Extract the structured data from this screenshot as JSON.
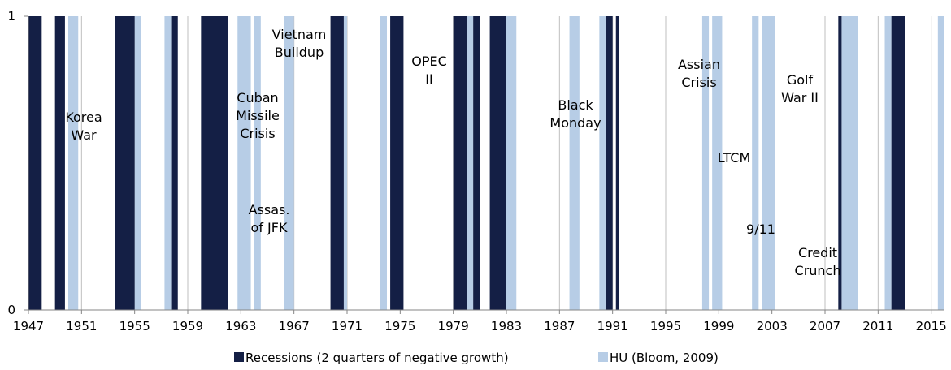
{
  "chart_data": {
    "type": "bar",
    "title": "",
    "xlabel": "",
    "ylabel": "",
    "xlim": [
      1947,
      2016
    ],
    "ylim": [
      0,
      1
    ],
    "x_ticks": [
      "1947",
      "1951",
      "1955",
      "1959",
      "1963",
      "1967",
      "1971",
      "1975",
      "1979",
      "1983",
      "1987",
      "1991",
      "1995",
      "1999",
      "2003",
      "2007",
      "2011",
      "2015"
    ],
    "y_ticks": [
      "0",
      "1"
    ],
    "grid": "vertical",
    "legend_position": "bottom",
    "series": [
      {
        "name": "Recessions (2 quarters of negative growth)",
        "color": "#141f45",
        "periods": [
          [
            1947.0,
            1948.0
          ],
          [
            1949.0,
            1949.75
          ],
          [
            1953.5,
            1955.0
          ],
          [
            1957.75,
            1958.25
          ],
          [
            1960.0,
            1962.0
          ],
          [
            1969.75,
            1970.75
          ],
          [
            1974.25,
            1975.25
          ],
          [
            1979.0,
            1980.0
          ],
          [
            1980.5,
            1981.0
          ],
          [
            1981.75,
            1983.0
          ],
          [
            1990.5,
            1991.0
          ],
          [
            1991.25,
            1991.5
          ],
          [
            2008.0,
            2008.25
          ],
          [
            2012.0,
            2013.0
          ]
        ]
      },
      {
        "name": "HU (Bloom, 2009)",
        "color": "#b7cde6",
        "periods": [
          [
            1950.0,
            1950.75
          ],
          [
            1955.0,
            1955.5
          ],
          [
            1957.25,
            1957.75
          ],
          [
            1962.75,
            1963.75
          ],
          [
            1964.0,
            1964.5
          ],
          [
            1966.25,
            1967.0
          ],
          [
            1970.75,
            1971.0
          ],
          [
            1973.5,
            1974.0
          ],
          [
            1980.0,
            1980.5
          ],
          [
            1983.0,
            1983.75
          ],
          [
            1987.75,
            1988.5
          ],
          [
            1990.0,
            1990.5
          ],
          [
            1997.75,
            1998.25
          ],
          [
            1998.5,
            1999.25
          ],
          [
            2001.5,
            2002.0
          ],
          [
            2002.25,
            2003.25
          ],
          [
            2008.25,
            2009.5
          ],
          [
            2011.5,
            2012.0
          ],
          [
            2015.5,
            2016.0
          ]
        ]
      }
    ],
    "annotations": [
      {
        "lines": [
          "Korea",
          "War"
        ]
      },
      {
        "lines": [
          "Cuban",
          "Missile",
          "Crisis"
        ]
      },
      {
        "lines": [
          "Assas.",
          "of JFK"
        ]
      },
      {
        "lines": [
          "Vietnam",
          "Buildup"
        ]
      },
      {
        "lines": [
          "OPEC",
          "II"
        ]
      },
      {
        "lines": [
          "Black",
          "Monday"
        ]
      },
      {
        "lines": [
          "Assian",
          "Crisis"
        ]
      },
      {
        "lines": [
          "LTCM"
        ]
      },
      {
        "lines": [
          "Golf",
          "War II"
        ]
      },
      {
        "lines": [
          "9/11"
        ]
      },
      {
        "lines": [
          "Credit",
          "Crunch"
        ]
      }
    ]
  }
}
